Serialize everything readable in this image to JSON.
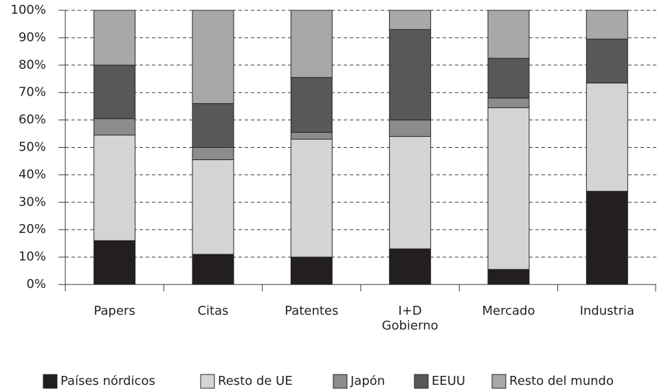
{
  "chart_data": {
    "type": "stacked_bar",
    "categories": [
      "Papers",
      "Citas",
      "Patentes",
      "I+D\nGobierno",
      "Mercado",
      "Industria"
    ],
    "series": [
      {
        "name": "Países nórdicos",
        "color": "#231f20",
        "values": [
          16,
          11,
          10,
          13,
          5.5,
          34
        ]
      },
      {
        "name": "Resto de UE",
        "color": "#d4d4d4",
        "values": [
          38.5,
          34.5,
          43,
          41,
          59,
          39.5
        ]
      },
      {
        "name": "Japón",
        "color": "#8c8c8c",
        "values": [
          6,
          4.5,
          2.5,
          6,
          3.5,
          0
        ]
      },
      {
        "name": "EEUU",
        "color": "#585858",
        "values": [
          19.5,
          16,
          20,
          33,
          14.5,
          16
        ]
      },
      {
        "name": "Resto del mundo",
        "color": "#a8a8a8",
        "values": [
          20,
          34,
          24.5,
          7,
          17.5,
          10.5
        ]
      }
    ],
    "ylim": [
      0,
      100
    ],
    "yticks": [
      {
        "value": 0,
        "label": "0%"
      },
      {
        "value": 10,
        "label": "10%"
      },
      {
        "value": 20,
        "label": "20%"
      },
      {
        "value": 30,
        "label": "30%"
      },
      {
        "value": 40,
        "label": "40%"
      },
      {
        "value": 50,
        "label": "50%"
      },
      {
        "value": 60,
        "label": "60%"
      },
      {
        "value": 70,
        "label": "70%"
      },
      {
        "value": 80,
        "label": "80%"
      },
      {
        "value": 90,
        "label": "90%"
      },
      {
        "value": 100,
        "label": "100%"
      }
    ],
    "grid": true,
    "legend": "bottom"
  }
}
